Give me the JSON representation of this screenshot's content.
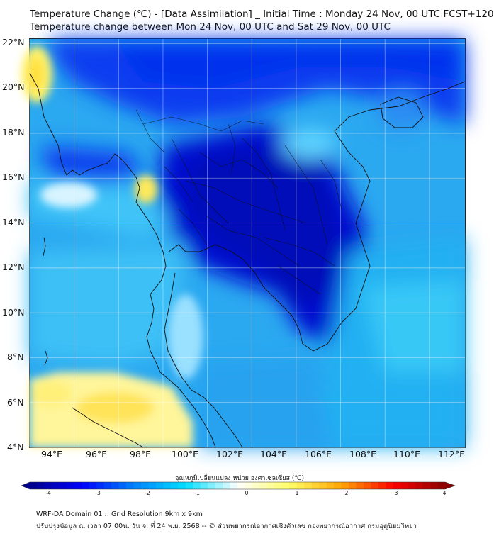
{
  "title_line1": "Temperature Change (℃) - [Data Assimilation] _ Initial Time : Monday 24 Nov, 00 UTC FCST+120",
  "title_line2": "Temperature change between Mon 24 Nov, 00 UTC and Sat 29 Nov, 00 UTC",
  "map": {
    "lat_range": [
      4,
      22.2
    ],
    "lon_range": [
      93,
      112.6
    ],
    "lat_ticks": [
      "4°N",
      "6°N",
      "8°N",
      "10°N",
      "12°N",
      "14°N",
      "16°N",
      "18°N",
      "20°N",
      "22°N"
    ],
    "lon_ticks": [
      "94°E",
      "96°E",
      "98°E",
      "100°E",
      "102°E",
      "104°E",
      "106°E",
      "108°E",
      "110°E",
      "112°E"
    ],
    "gridlines": true
  },
  "colorbar": {
    "title": "อุณหภูมิเปลี่ยนแปลง หน่วย องศาเซลเซียส (℃)",
    "tick_labels": [
      "-4",
      "-3",
      "-2",
      "-1",
      "0",
      "1",
      "2",
      "3",
      "4"
    ],
    "range": [
      -4,
      4
    ],
    "extend": "both",
    "colors": [
      "#00008b",
      "#0000ff",
      "#0080ff",
      "#00e0ff",
      "#ffffff",
      "#ffff66",
      "#ffa500",
      "#ff0000",
      "#8b0000"
    ]
  },
  "footer_line1": "WRF-DA Domain 01 :: Grid Resolution 9km x 9km",
  "footer_line2": "ปรับปรุงข้อมูล ณ เวลา 07:00น. วัน จ. ที่ 24 พ.ย. 2568 -- © ส่วนพยากรณ์อากาศเชิงตัวเลข กองพยากรณ์อากาศ กรมอุตุนิยมวิทยา"
}
